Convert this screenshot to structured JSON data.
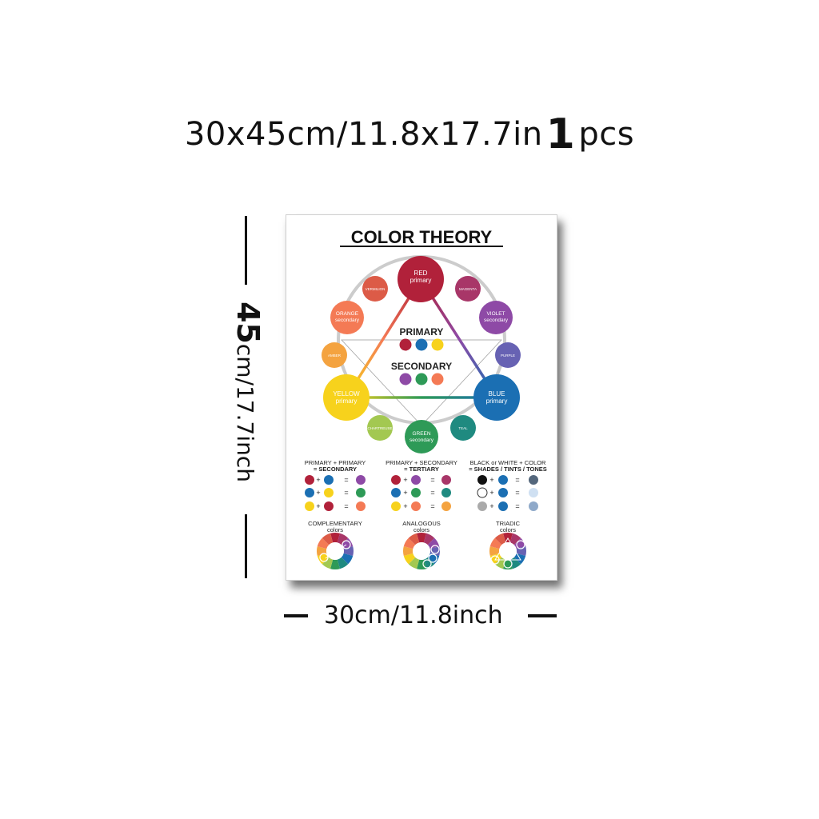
{
  "header": {
    "size_text": "30x45cm/11.8x17.7in",
    "quantity": "1",
    "unit": "pcs"
  },
  "dimensions": {
    "height_number": "45",
    "height_text": "cm/17.7inch",
    "width_text": "30cm/11.8inch"
  },
  "poster": {
    "title": "COLOR THEORY",
    "wheel": {
      "red": {
        "name": "RED",
        "type": "primary",
        "color": "#b1213a"
      },
      "blue": {
        "name": "BLUE",
        "type": "primary",
        "color": "#1b6fb3"
      },
      "yellow": {
        "name": "YELLOW",
        "type": "primary",
        "color": "#f7d21c"
      },
      "orange": {
        "name": "ORANGE",
        "type": "secondary",
        "color": "#f47a55"
      },
      "violet": {
        "name": "VIOLET",
        "type": "secondary",
        "color": "#8e4aa6"
      },
      "green": {
        "name": "GREEN",
        "type": "secondary",
        "color": "#2e9a57"
      },
      "vermilion": {
        "name": "VERMILION",
        "color": "#dc5b47"
      },
      "magenta": {
        "name": "MAGENTA",
        "color": "#a83668"
      },
      "purple": {
        "name": "PURPLE",
        "color": "#6762b3"
      },
      "teal": {
        "name": "TEAL",
        "color": "#1f8a80"
      },
      "chartreuse": {
        "name": "CHARTREUSE",
        "color": "#a3c851"
      },
      "amber": {
        "name": "AMBER",
        "color": "#f4a340"
      }
    },
    "center": {
      "primary_label": "PRIMARY",
      "secondary_label": "SECONDARY"
    },
    "mixing": [
      {
        "line1": "PRIMARY + PRIMARY",
        "line2": "= SECONDARY"
      },
      {
        "line1": "PRIMARY + SECONDARY",
        "line2": "= TERTIARY"
      },
      {
        "line1": "BLACK or WHITE + COLOR",
        "line2": "= SHADES / TINTS / TONES"
      }
    ],
    "schemes": [
      {
        "name": "COMPLEMENTARY",
        "sub": "colors"
      },
      {
        "name": "ANALOGOUS",
        "sub": "colors"
      },
      {
        "name": "TRIADIC",
        "sub": "colors"
      }
    ]
  }
}
